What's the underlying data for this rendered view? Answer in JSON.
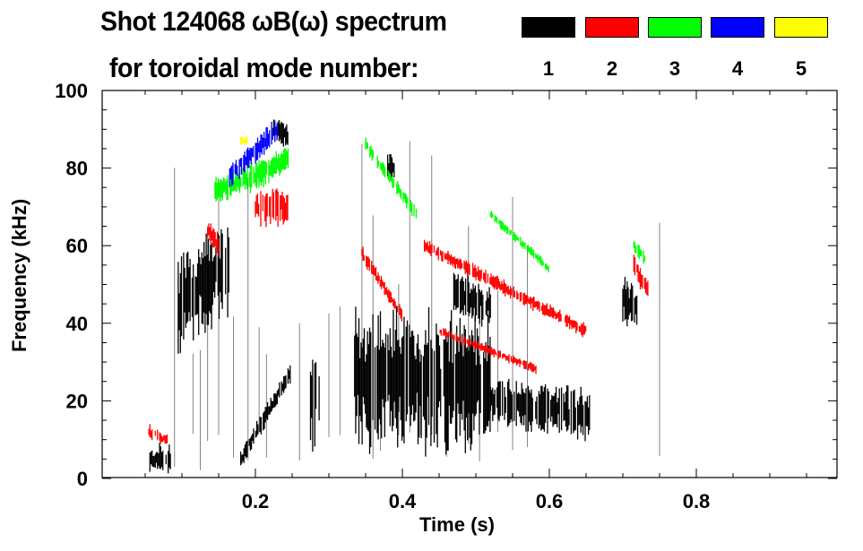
{
  "chart_data": {
    "type": "heatmap",
    "title": "Shot 124068 ωB(ω) spectrum",
    "subtitle": "for toroidal mode number:",
    "xlabel": "Time (s)",
    "ylabel": "Frequency (kHz)",
    "xlim": [
      0,
      1.0
    ],
    "ylim": [
      0,
      100
    ],
    "xticks": [
      0.2,
      0.4,
      0.6,
      0.8
    ],
    "xtick_labels": [
      "0.2",
      "0.4",
      "0.6",
      "0.8"
    ],
    "yticks": [
      0,
      20,
      40,
      60,
      80,
      100
    ],
    "ytick_labels": [
      "0",
      "20",
      "40",
      "60",
      "80",
      "100"
    ],
    "legend": [
      {
        "mode": "1",
        "color": "#000000"
      },
      {
        "mode": "2",
        "color": "#ff0000"
      },
      {
        "mode": "3",
        "color": "#00ff00"
      },
      {
        "mode": "4",
        "color": "#0000ff"
      },
      {
        "mode": "5",
        "color": "#ffff00"
      }
    ],
    "features": [
      {
        "mode": 1,
        "t": [
          0.055,
          0.085
        ],
        "f": [
          5,
          5
        ],
        "w": 6
      },
      {
        "mode": 1,
        "t": [
          0.095,
          0.165
        ],
        "f": [
          45,
          55
        ],
        "w": 20
      },
      {
        "mode": 1,
        "t": [
          0.18,
          0.25
        ],
        "f": [
          5,
          28
        ],
        "w": 4
      },
      {
        "mode": 1,
        "t": [
          0.225,
          0.245
        ],
        "f": [
          90,
          88
        ],
        "w": 5
      },
      {
        "mode": 1,
        "t": [
          0.275,
          0.29
        ],
        "f": [
          22,
          22
        ],
        "w": 26
      },
      {
        "mode": 1,
        "t": [
          0.335,
          0.52
        ],
        "f": [
          25,
          25
        ],
        "w": 28
      },
      {
        "mode": 1,
        "t": [
          0.52,
          0.655
        ],
        "f": [
          20,
          16
        ],
        "w": 10
      },
      {
        "mode": 1,
        "t": [
          0.38,
          0.39
        ],
        "f": [
          80,
          80
        ],
        "w": 6
      },
      {
        "mode": 1,
        "t": [
          0.47,
          0.52
        ],
        "f": [
          48,
          44
        ],
        "w": 8
      },
      {
        "mode": 1,
        "t": [
          0.7,
          0.72
        ],
        "f": [
          46,
          44
        ],
        "w": 10
      },
      {
        "mode": 2,
        "t": [
          0.055,
          0.08
        ],
        "f": [
          12,
          10
        ],
        "w": 3
      },
      {
        "mode": 2,
        "t": [
          0.135,
          0.15
        ],
        "f": [
          64,
          60
        ],
        "w": 5
      },
      {
        "mode": 2,
        "t": [
          0.2,
          0.245
        ],
        "f": [
          70,
          70
        ],
        "w": 8
      },
      {
        "mode": 2,
        "t": [
          0.345,
          0.4
        ],
        "f": [
          58,
          42
        ],
        "w": 3
      },
      {
        "mode": 2,
        "t": [
          0.43,
          0.65
        ],
        "f": [
          60,
          38
        ],
        "w": 3
      },
      {
        "mode": 2,
        "t": [
          0.45,
          0.585
        ],
        "f": [
          38,
          28
        ],
        "w": 2
      },
      {
        "mode": 2,
        "t": [
          0.715,
          0.735
        ],
        "f": [
          55,
          48
        ],
        "w": 5
      },
      {
        "mode": 3,
        "t": [
          0.145,
          0.245
        ],
        "f": [
          74,
          82
        ],
        "w": 6
      },
      {
        "mode": 3,
        "t": [
          0.35,
          0.42
        ],
        "f": [
          86,
          68
        ],
        "w": 3
      },
      {
        "mode": 3,
        "t": [
          0.52,
          0.6
        ],
        "f": [
          68,
          54
        ],
        "w": 2
      },
      {
        "mode": 3,
        "t": [
          0.715,
          0.73
        ],
        "f": [
          60,
          57
        ],
        "w": 3
      },
      {
        "mode": 4,
        "t": [
          0.165,
          0.23
        ],
        "f": [
          78,
          90
        ],
        "w": 5
      },
      {
        "mode": 5,
        "t": [
          0.18,
          0.19
        ],
        "f": [
          87,
          87
        ],
        "w": 2
      }
    ],
    "streaks": [
      0.09,
      0.115,
      0.125,
      0.135,
      0.15,
      0.17,
      0.19,
      0.205,
      0.215,
      0.26,
      0.3,
      0.315,
      0.345,
      0.36,
      0.37,
      0.395,
      0.41,
      0.425,
      0.44,
      0.46,
      0.49,
      0.505,
      0.53,
      0.55,
      0.57,
      0.75
    ]
  }
}
